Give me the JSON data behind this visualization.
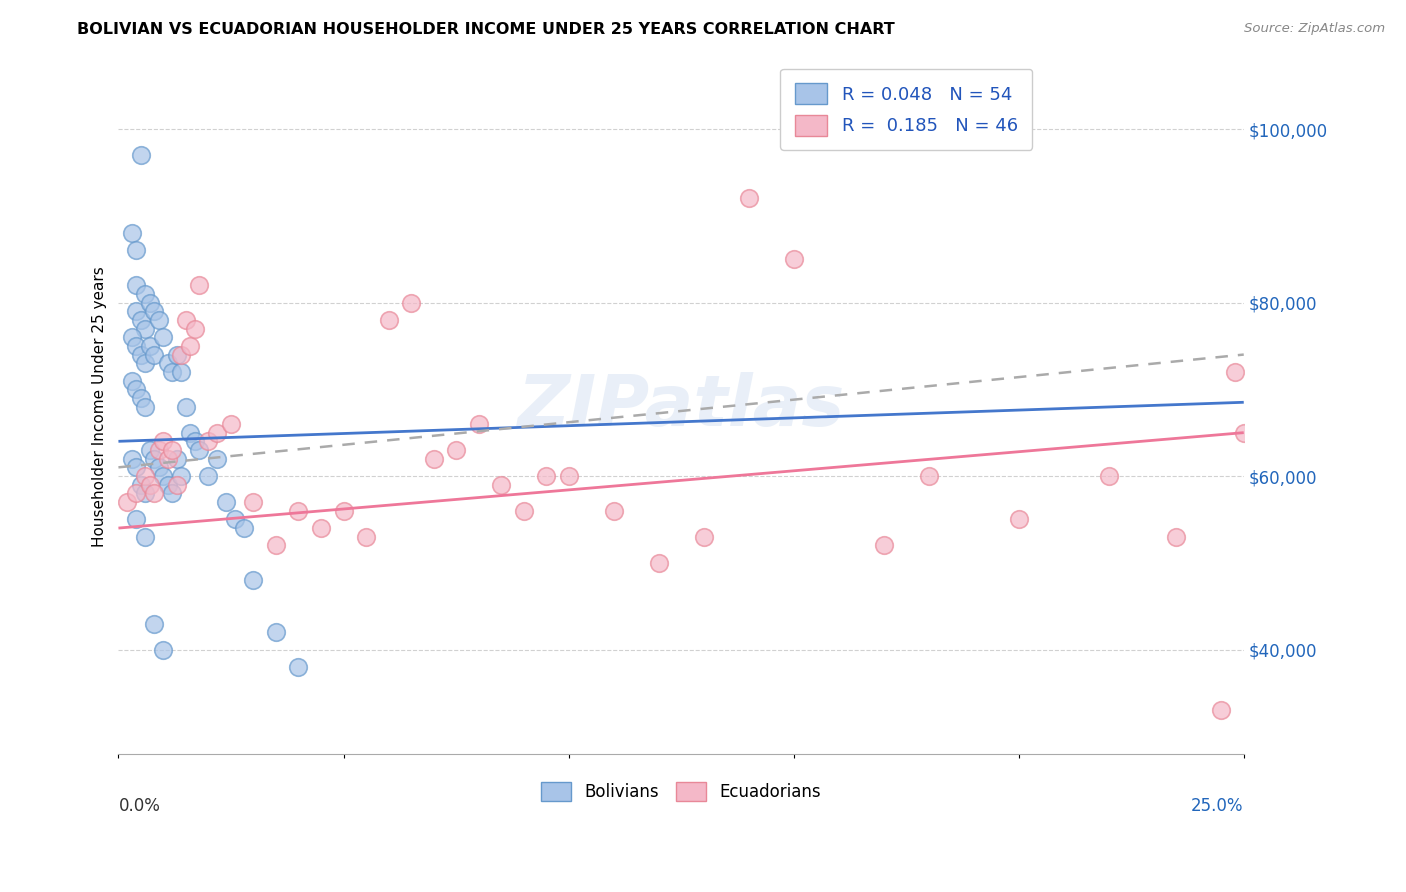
{
  "title": "BOLIVIAN VS ECUADORIAN HOUSEHOLDER INCOME UNDER 25 YEARS CORRELATION CHART",
  "source": "Source: ZipAtlas.com",
  "ylabel": "Householder Income Under 25 years",
  "ytick_positions": [
    40000,
    60000,
    80000,
    100000
  ],
  "ytick_labels": [
    "$40,000",
    "$60,000",
    "$80,000",
    "$100,000"
  ],
  "legend_r1": "R = 0.048",
  "legend_n1": "N = 54",
  "legend_r2": "R =  0.185",
  "legend_n2": "N = 46",
  "blue_fill": "#A8C4E8",
  "blue_edge": "#6699CC",
  "pink_fill": "#F4B8C8",
  "pink_edge": "#E88898",
  "blue_line": "#4477CC",
  "pink_line": "#EE7799",
  "dashed_line": "#AAAAAA",
  "watermark": "ZIPatlas",
  "xlim": [
    0.0,
    0.25
  ],
  "ylim": [
    28000,
    108000
  ],
  "bolivians_x": [
    0.005,
    0.003,
    0.004,
    0.004,
    0.006,
    0.004,
    0.005,
    0.006,
    0.007,
    0.008,
    0.003,
    0.004,
    0.005,
    0.006,
    0.003,
    0.004,
    0.005,
    0.006,
    0.007,
    0.008,
    0.009,
    0.01,
    0.011,
    0.012,
    0.013,
    0.014,
    0.015,
    0.016,
    0.017,
    0.018,
    0.003,
    0.004,
    0.005,
    0.006,
    0.007,
    0.008,
    0.009,
    0.01,
    0.011,
    0.012,
    0.013,
    0.014,
    0.02,
    0.022,
    0.024,
    0.026,
    0.028,
    0.03,
    0.035,
    0.04,
    0.004,
    0.006,
    0.008,
    0.01
  ],
  "bolivians_y": [
    97000,
    88000,
    86000,
    82000,
    81000,
    79000,
    78000,
    77000,
    80000,
    79000,
    76000,
    75000,
    74000,
    73000,
    71000,
    70000,
    69000,
    68000,
    75000,
    74000,
    78000,
    76000,
    73000,
    72000,
    74000,
    72000,
    68000,
    65000,
    64000,
    63000,
    62000,
    61000,
    59000,
    58000,
    63000,
    62000,
    61000,
    60000,
    59000,
    58000,
    62000,
    60000,
    60000,
    62000,
    57000,
    55000,
    54000,
    48000,
    42000,
    38000,
    55000,
    53000,
    43000,
    40000
  ],
  "ecuadorians_x": [
    0.002,
    0.004,
    0.006,
    0.007,
    0.008,
    0.009,
    0.01,
    0.011,
    0.012,
    0.013,
    0.014,
    0.015,
    0.016,
    0.017,
    0.018,
    0.02,
    0.022,
    0.025,
    0.03,
    0.035,
    0.04,
    0.045,
    0.05,
    0.055,
    0.06,
    0.065,
    0.07,
    0.075,
    0.08,
    0.085,
    0.09,
    0.095,
    0.1,
    0.11,
    0.12,
    0.13,
    0.14,
    0.15,
    0.17,
    0.18,
    0.2,
    0.22,
    0.235,
    0.245,
    0.248,
    0.25
  ],
  "ecuadorians_y": [
    57000,
    58000,
    60000,
    59000,
    58000,
    63000,
    64000,
    62000,
    63000,
    59000,
    74000,
    78000,
    75000,
    77000,
    82000,
    64000,
    65000,
    66000,
    57000,
    52000,
    56000,
    54000,
    56000,
    53000,
    78000,
    80000,
    62000,
    63000,
    66000,
    59000,
    56000,
    60000,
    60000,
    56000,
    50000,
    53000,
    92000,
    85000,
    52000,
    60000,
    55000,
    60000,
    53000,
    33000,
    72000,
    65000
  ],
  "blue_trend_x": [
    0.0,
    0.25
  ],
  "blue_trend_y": [
    64000,
    68500
  ],
  "pink_trend_x": [
    0.0,
    0.25
  ],
  "pink_trend_y": [
    54000,
    65000
  ],
  "dashed_trend_x": [
    0.0,
    0.25
  ],
  "dashed_trend_y": [
    61000,
    74000
  ]
}
